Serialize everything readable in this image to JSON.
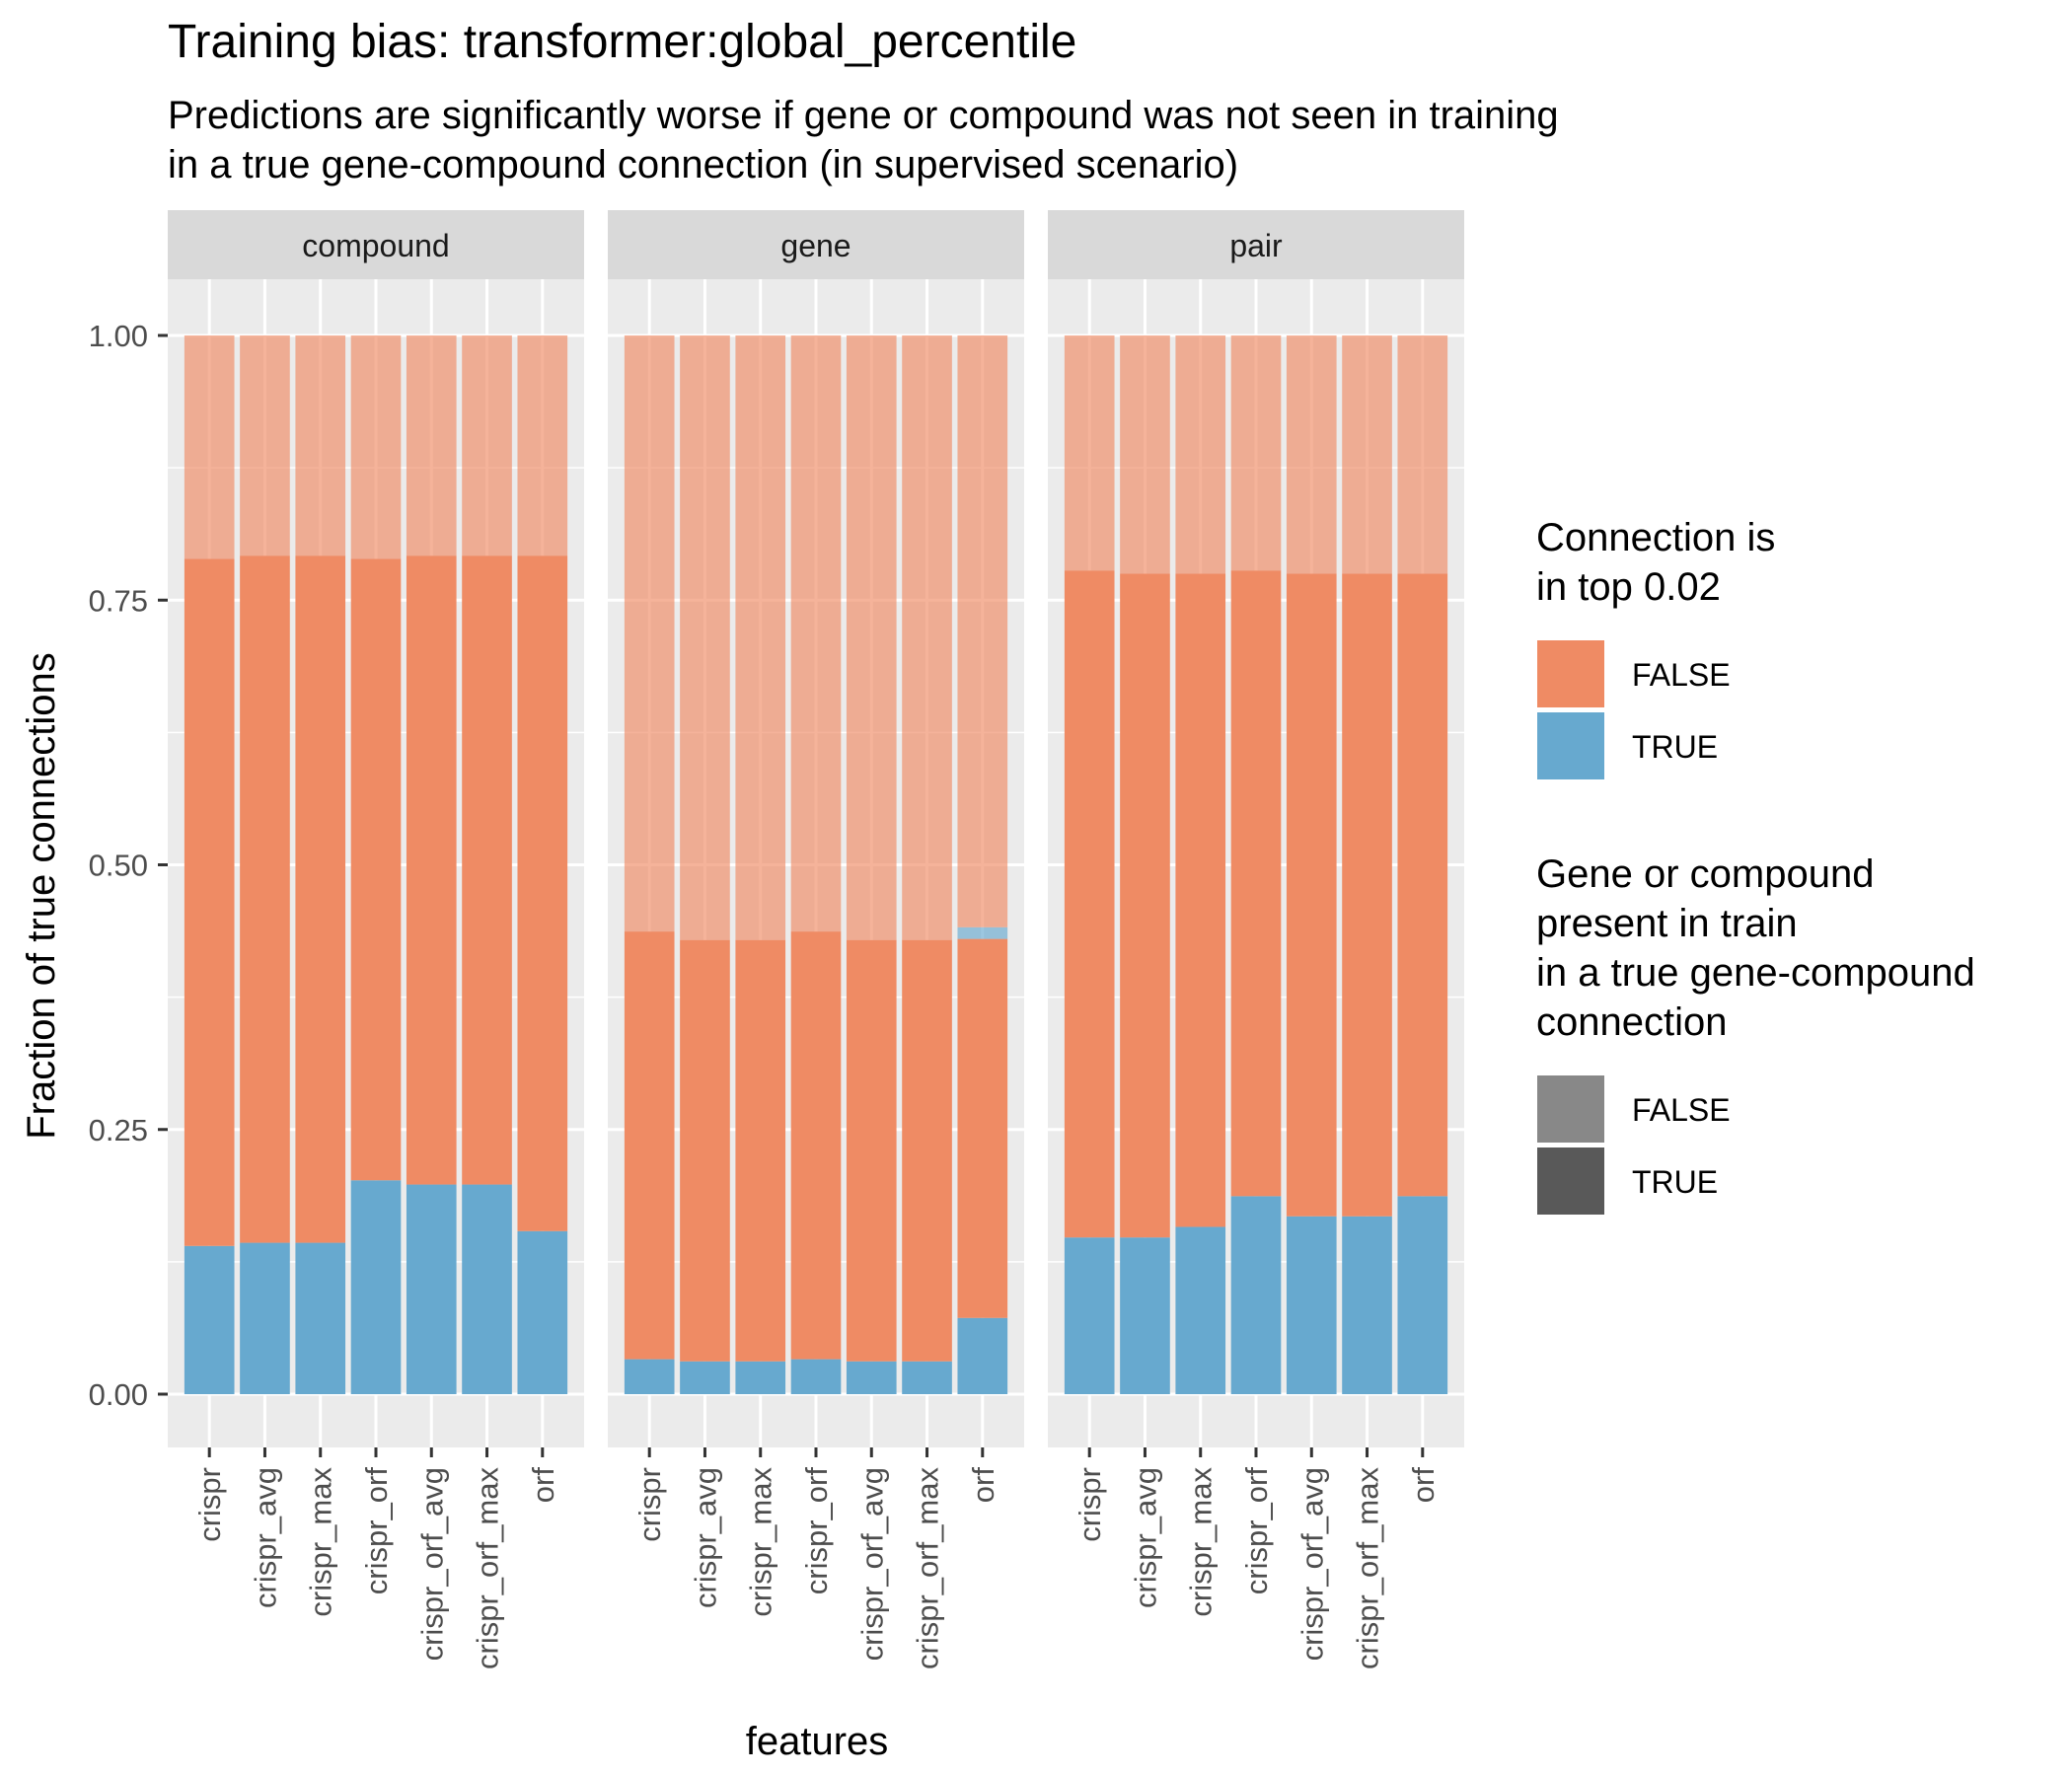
{
  "chart_data": {
    "type": "bar",
    "stacked": true,
    "title": "Training bias: transformer:global_percentile",
    "subtitle": [
      "Predictions are significantly worse if gene or compound was not seen in training",
      "in a true gene-compound connection (in supervised scenario)"
    ],
    "xlabel": "features",
    "ylabel": "Fraction of true connections",
    "ylim": [
      0,
      1
    ],
    "yticks": [
      "0.00",
      "0.25",
      "0.50",
      "0.75",
      "1.00"
    ],
    "grid": true,
    "legend_position": "right",
    "categories": [
      "crispr",
      "crispr_avg",
      "crispr_max",
      "crispr_orf",
      "crispr_orf_avg",
      "crispr_orf_max",
      "orf"
    ],
    "colors": {
      "top_false": "#ef8b64",
      "top_true": "#67a9cf",
      "panel_bg": "#ebebeb",
      "strip_bg": "#d9d9d9",
      "grid": "#ffffff"
    },
    "alpha": {
      "present_false": 0.65,
      "present_true": 1.0
    },
    "legends": [
      {
        "title": [
          "Connection is",
          "in top 0.02"
        ],
        "items": [
          {
            "label": "FALSE",
            "color": "#ef8b64"
          },
          {
            "label": "TRUE",
            "color": "#67a9cf"
          }
        ]
      },
      {
        "title": [
          "Gene or compound",
          "present in train",
          "in a true gene-compound",
          "connection"
        ],
        "items": [
          {
            "label": "FALSE",
            "color": "#888888"
          },
          {
            "label": "TRUE",
            "color": "#595959"
          }
        ]
      }
    ],
    "panels": [
      {
        "name": "compound",
        "series": [
          {
            "connection_in_top": "TRUE",
            "present_in_train": "TRUE",
            "values": [
              0.14,
              0.143,
              0.143,
              0.202,
              0.198,
              0.198,
              0.154
            ]
          },
          {
            "connection_in_top": "FALSE",
            "present_in_train": "TRUE",
            "values": [
              0.649,
              0.649,
              0.649,
              0.587,
              0.594,
              0.594,
              0.638
            ]
          },
          {
            "connection_in_top": "TRUE",
            "present_in_train": "FALSE",
            "values": [
              0,
              0,
              0,
              0,
              0,
              0,
              0
            ]
          },
          {
            "connection_in_top": "FALSE",
            "present_in_train": "FALSE",
            "values": [
              0.211,
              0.208,
              0.208,
              0.211,
              0.208,
              0.208,
              0.208
            ]
          }
        ]
      },
      {
        "name": "gene",
        "series": [
          {
            "connection_in_top": "TRUE",
            "present_in_train": "TRUE",
            "values": [
              0.033,
              0.031,
              0.031,
              0.033,
              0.031,
              0.031,
              0.072
            ]
          },
          {
            "connection_in_top": "FALSE",
            "present_in_train": "TRUE",
            "values": [
              0.404,
              0.398,
              0.398,
              0.404,
              0.398,
              0.398,
              0.358
            ]
          },
          {
            "connection_in_top": "TRUE",
            "present_in_train": "FALSE",
            "values": [
              0,
              0,
              0,
              0,
              0,
              0,
              0.011
            ]
          },
          {
            "connection_in_top": "FALSE",
            "present_in_train": "FALSE",
            "values": [
              0.563,
              0.571,
              0.571,
              0.563,
              0.571,
              0.571,
              0.559
            ]
          }
        ]
      },
      {
        "name": "pair",
        "series": [
          {
            "connection_in_top": "TRUE",
            "present_in_train": "TRUE",
            "values": [
              0.148,
              0.148,
              0.158,
              0.187,
              0.168,
              0.168,
              0.187
            ]
          },
          {
            "connection_in_top": "FALSE",
            "present_in_train": "TRUE",
            "values": [
              0.63,
              0.627,
              0.617,
              0.591,
              0.607,
              0.607,
              0.588
            ]
          },
          {
            "connection_in_top": "TRUE",
            "present_in_train": "FALSE",
            "values": [
              0,
              0,
              0,
              0,
              0,
              0,
              0
            ]
          },
          {
            "connection_in_top": "FALSE",
            "present_in_train": "FALSE",
            "values": [
              0.222,
              0.225,
              0.225,
              0.222,
              0.225,
              0.225,
              0.225
            ]
          }
        ]
      }
    ]
  }
}
